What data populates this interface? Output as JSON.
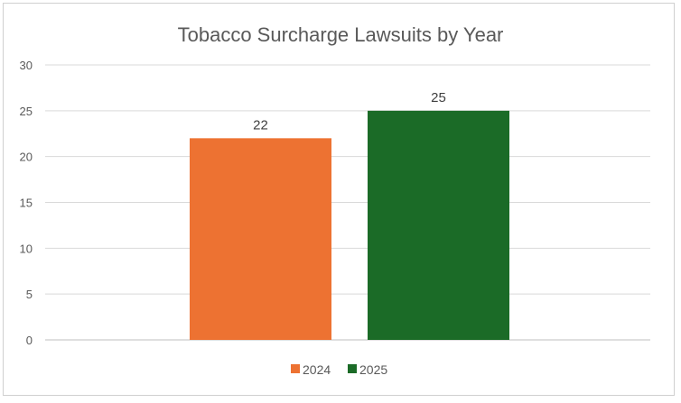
{
  "chart_data": {
    "type": "bar",
    "title": "Tobacco Surcharge Lawsuits by Year",
    "categories": [
      "2024",
      "2025"
    ],
    "values": [
      22,
      25
    ],
    "colors": [
      "#ED7232",
      "#1B6B27"
    ],
    "ylim": [
      0,
      30
    ],
    "yticks": [
      0,
      5,
      10,
      15,
      20,
      25,
      30
    ],
    "grid": true,
    "legend": "bottom",
    "data_labels": true
  }
}
